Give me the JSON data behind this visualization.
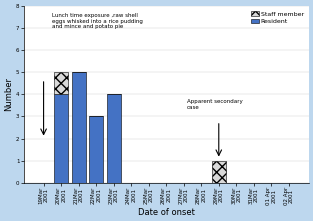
{
  "dates": [
    "19Mar\n2001",
    "20Mar\n2001",
    "21Mar\n2001",
    "22Mar\n2001",
    "23Mar\n2001",
    "24Mar\n2001",
    "25Mar\n2001",
    "26Mar\n2001",
    "27Mar\n2001",
    "28Mar\n2001",
    "29Mar\n2001",
    "30Mar\n2001",
    "31Mar\n2001",
    "01 Apr\n2001",
    "02 Apr\n2001"
  ],
  "residents": [
    0,
    4,
    5,
    3,
    4,
    0,
    0,
    0,
    0,
    0,
    0,
    0,
    0,
    0,
    0
  ],
  "staff": [
    0,
    1,
    0,
    0,
    0,
    0,
    0,
    0,
    0,
    0,
    1,
    0,
    0,
    0,
    0
  ],
  "resident_color": "#4472C4",
  "staff_color": "#D9D9D9",
  "bg_color": "#BDD7EE",
  "plot_bg": "#FFFFFF",
  "xlabel": "Date of onset",
  "ylabel": "Number",
  "ylim": [
    0,
    8
  ],
  "yticks": [
    0,
    1,
    2,
    3,
    4,
    5,
    6,
    7,
    8
  ],
  "annotation_text1": "Lunch time exposure ,raw shell\neggs whisked into a rice pudding\nand mince and potato pie",
  "annotation_text2": "Apparent secondary\ncase",
  "legend_staff": "Staff member",
  "legend_resident": "Resident"
}
